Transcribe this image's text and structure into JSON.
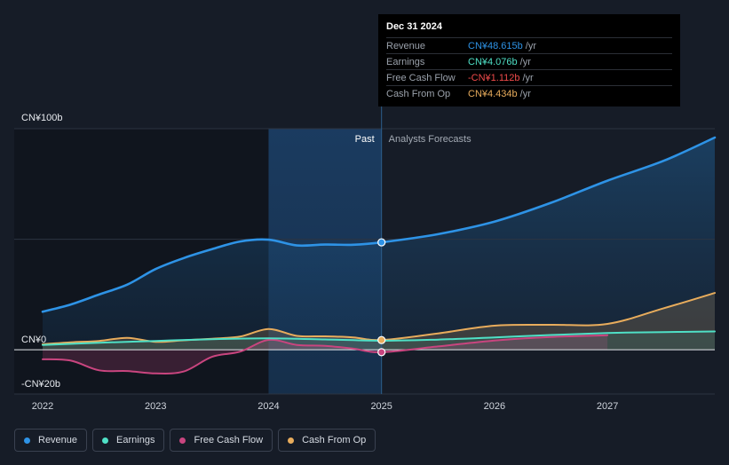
{
  "colors": {
    "revenue": "#2e93e6",
    "earnings": "#4fe0c6",
    "fcf": "#c9457f",
    "cfo": "#e8ac5c",
    "background": "#161c27",
    "past_shade": "#1a3452"
  },
  "tooltip": {
    "date": "Dec 31 2024",
    "rows": [
      {
        "name": "Revenue",
        "value": "CN¥48.615b",
        "unit": "/yr",
        "color": "#2e93e6"
      },
      {
        "name": "Earnings",
        "value": "CN¥4.076b",
        "unit": "/yr",
        "color": "#4fe0c6"
      },
      {
        "name": "Free Cash Flow",
        "value": "-CN¥1.112b",
        "unit": "/yr",
        "color": "#f04b4b"
      },
      {
        "name": "Cash From Op",
        "value": "CN¥4.434b",
        "unit": "/yr",
        "color": "#e8ac5c"
      }
    ]
  },
  "legend": [
    {
      "label": "Revenue",
      "color": "#2e93e6"
    },
    {
      "label": "Earnings",
      "color": "#4fe0c6"
    },
    {
      "label": "Free Cash Flow",
      "color": "#c9457f"
    },
    {
      "label": "Cash From Op",
      "color": "#e8ac5c"
    }
  ],
  "chart_data": {
    "type": "line",
    "y_unit_labels": {
      "top": "CN¥100b",
      "zero": "CN¥0",
      "bottom": "-CN¥20b"
    },
    "ylim": [
      -20,
      100
    ],
    "xlim": [
      2022,
      2027.95
    ],
    "x_ticks": [
      "2022",
      "2023",
      "2024",
      "2025",
      "2026",
      "2027"
    ],
    "past_label": "Past",
    "forecast_label": "Analysts Forecasts",
    "past_end": 2025,
    "past_shade_start": 2024,
    "highlight_x": 2025,
    "series": [
      {
        "name": "Revenue",
        "key": "revenue",
        "points": [
          [
            2022,
            17.2
          ],
          [
            2022.25,
            20.5
          ],
          [
            2022.5,
            25
          ],
          [
            2022.75,
            29.5
          ],
          [
            2023,
            36.5
          ],
          [
            2023.25,
            41.5
          ],
          [
            2023.5,
            45.5
          ],
          [
            2023.75,
            49
          ],
          [
            2024,
            49.8
          ],
          [
            2024.25,
            47.2
          ],
          [
            2024.5,
            47.6
          ],
          [
            2024.75,
            47.5
          ],
          [
            2025,
            48.6
          ],
          [
            2025.5,
            52.3
          ],
          [
            2026,
            58
          ],
          [
            2026.5,
            66.5
          ],
          [
            2027,
            76.5
          ],
          [
            2027.5,
            85.5
          ],
          [
            2027.95,
            96
          ]
        ]
      },
      {
        "name": "Earnings",
        "key": "earnings",
        "points": [
          [
            2022,
            2.2
          ],
          [
            2022.5,
            3.2
          ],
          [
            2023,
            4.0
          ],
          [
            2023.5,
            4.8
          ],
          [
            2024,
            5.2
          ],
          [
            2024.5,
            4.7
          ],
          [
            2025,
            4.1
          ],
          [
            2025.5,
            4.6
          ],
          [
            2026,
            5.6
          ],
          [
            2026.5,
            6.7
          ],
          [
            2027,
            7.6
          ],
          [
            2027.5,
            8.0
          ],
          [
            2027.95,
            8.3
          ]
        ]
      },
      {
        "name": "Free Cash Flow",
        "key": "fcf",
        "points": [
          [
            2022,
            -4.3
          ],
          [
            2022.25,
            -4.9
          ],
          [
            2022.5,
            -9.3
          ],
          [
            2022.75,
            -9.6
          ],
          [
            2023,
            -10.7
          ],
          [
            2023.25,
            -9.8
          ],
          [
            2023.5,
            -3.2
          ],
          [
            2023.75,
            -0.8
          ],
          [
            2024,
            4.5
          ],
          [
            2024.25,
            2.2
          ],
          [
            2024.5,
            1.8
          ],
          [
            2024.75,
            0.5
          ],
          [
            2025,
            -1.1
          ],
          [
            2025.5,
            1.5
          ],
          [
            2026,
            4.2
          ],
          [
            2026.5,
            5.8
          ],
          [
            2027,
            6.6
          ]
        ]
      },
      {
        "name": "Cash From Op",
        "key": "cfo",
        "points": [
          [
            2022,
            2.5
          ],
          [
            2022.25,
            3.4
          ],
          [
            2022.5,
            4.0
          ],
          [
            2022.75,
            5.4
          ],
          [
            2023,
            3.6
          ],
          [
            2023.25,
            4.3
          ],
          [
            2023.5,
            5.0
          ],
          [
            2023.75,
            6.0
          ],
          [
            2024,
            9.4
          ],
          [
            2024.25,
            6.3
          ],
          [
            2024.5,
            6.1
          ],
          [
            2024.75,
            5.6
          ],
          [
            2025,
            4.4
          ],
          [
            2025.5,
            7.4
          ],
          [
            2026,
            10.9
          ],
          [
            2026.5,
            11.3
          ],
          [
            2027,
            11.7
          ],
          [
            2027.5,
            18.8
          ],
          [
            2027.95,
            25.7
          ]
        ]
      }
    ]
  }
}
